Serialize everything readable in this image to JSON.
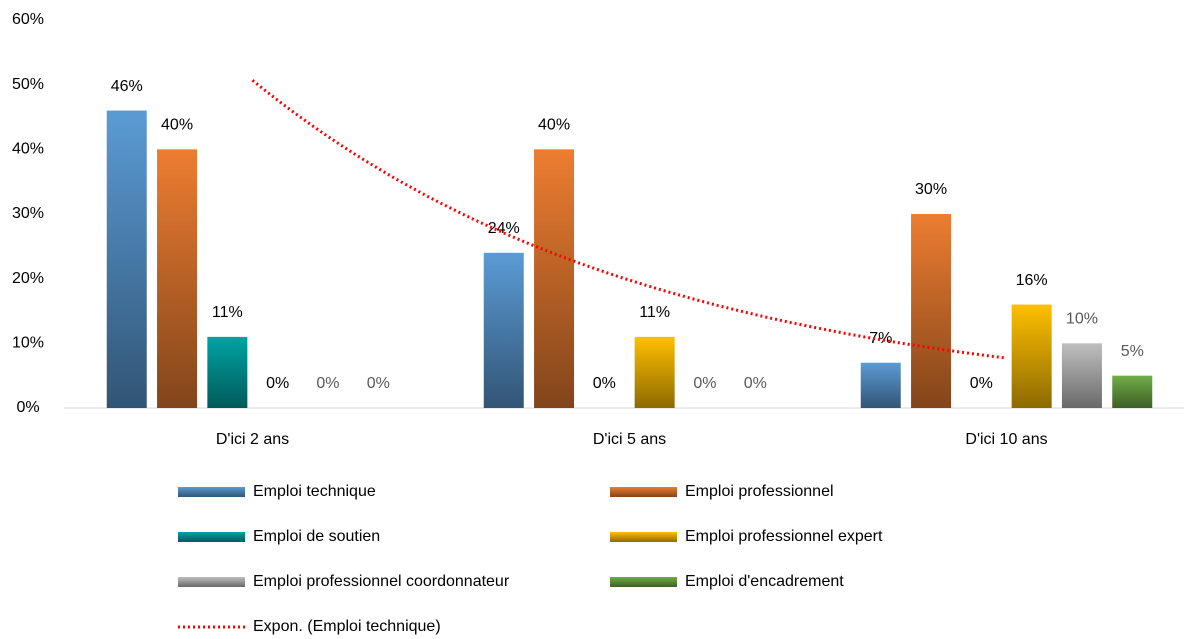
{
  "chart_data": {
    "type": "bar",
    "categories": [
      "D'ici 2 ans",
      "D'ici 5 ans",
      "D'ici 10 ans"
    ],
    "series": [
      {
        "name": "Emploi technique",
        "color": "#5b9bd5",
        "values": [
          46,
          24,
          7
        ],
        "value_labels": [
          "46%",
          "24%",
          "7%"
        ],
        "trendline": {
          "name": "Expon. (Emploi technique)",
          "color": "#ff0000"
        }
      },
      {
        "name": "Emploi professionnel",
        "color": "#ed7d31",
        "values": [
          40,
          40,
          30
        ],
        "value_labels": [
          "40%",
          "40%",
          "30%"
        ]
      },
      {
        "name": "Emploi de soutien",
        "color": "#00a3a3",
        "values": [
          11,
          0,
          0
        ],
        "value_labels": [
          "11%",
          "0%",
          "0%"
        ]
      },
      {
        "name": "Emploi professionnel expert",
        "color": "#ffc000",
        "values": [
          0,
          11,
          16
        ],
        "value_labels": [
          "0%",
          "11%",
          "16%"
        ]
      },
      {
        "name": "Emploi professionnel coordonnateur",
        "color": "#bfbfbf",
        "values": [
          0,
          0,
          10
        ],
        "value_labels": [
          "0%",
          "0%",
          "10%"
        ]
      },
      {
        "name": "Emploi d'encadrement",
        "color": "#70ad47",
        "values": [
          0,
          0,
          5
        ],
        "value_labels": [
          "0%",
          "0%",
          "5%"
        ]
      }
    ],
    "ylim": [
      0,
      60
    ],
    "yticks": [
      {
        "value": 0,
        "label": "0%"
      },
      {
        "value": 10,
        "label": "10%"
      },
      {
        "value": 20,
        "label": "20%"
      },
      {
        "value": 30,
        "label": "30%"
      },
      {
        "value": 40,
        "label": "40%"
      },
      {
        "value": 50,
        "label": "50%"
      },
      {
        "value": 60,
        "label": "60%"
      }
    ]
  }
}
